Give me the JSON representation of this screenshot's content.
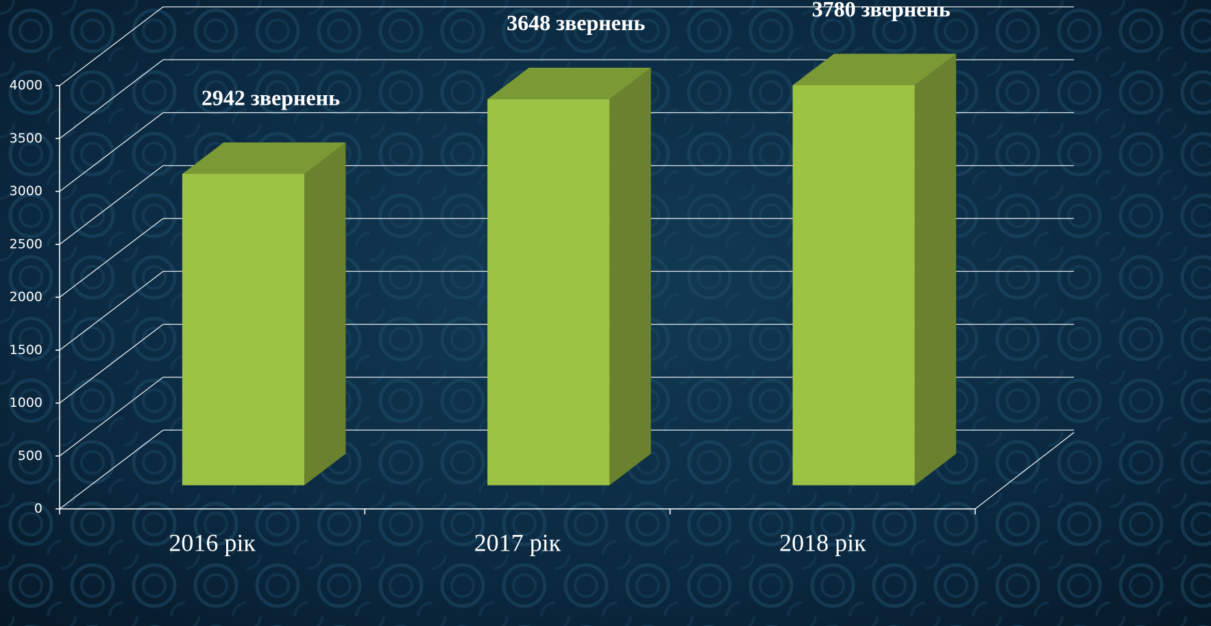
{
  "chart_data": {
    "type": "bar3d",
    "categories": [
      "2016 рік",
      "2017 рік",
      "2018 рік"
    ],
    "values": [
      2942,
      3648,
      3780
    ],
    "value_labels": [
      "2942 звернень",
      "3648 звернень",
      "3780 звернень"
    ],
    "color": "#9dc344",
    "ylim": [
      0,
      4000
    ],
    "yticks": [
      0,
      500,
      1000,
      1500,
      2000,
      2500,
      3000,
      3500,
      4000
    ],
    "grid": true
  }
}
